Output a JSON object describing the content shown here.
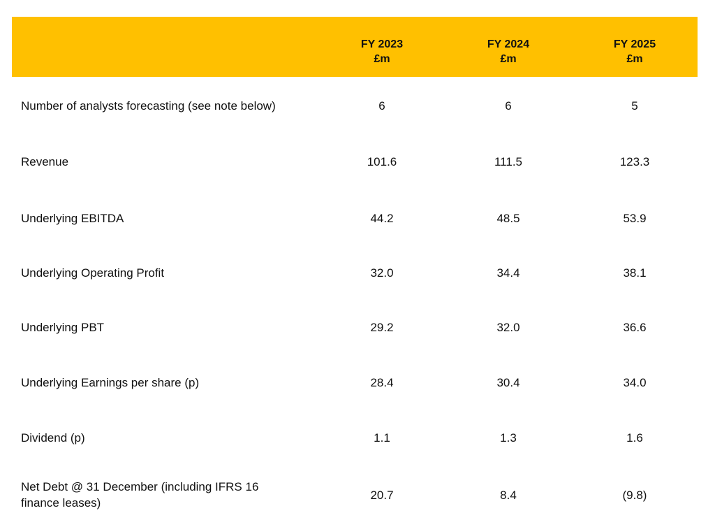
{
  "columns": [
    {
      "year": "FY 2023",
      "unit": "£m"
    },
    {
      "year": "FY 2024",
      "unit": "£m"
    },
    {
      "year": "FY 2025",
      "unit": "£m"
    }
  ],
  "rows": [
    {
      "label": "Number of analysts forecasting (see note below)",
      "values": [
        "6",
        "6",
        "5"
      ]
    },
    {
      "label": "Revenue",
      "values": [
        "101.6",
        "111.5",
        "123.3"
      ]
    },
    {
      "label": "Underlying EBITDA",
      "values": [
        "44.2",
        "48.5",
        "53.9"
      ]
    },
    {
      "label": "Underlying Operating Profit",
      "values": [
        "32.0",
        "34.4",
        "38.1"
      ]
    },
    {
      "label": "Underlying PBT",
      "values": [
        "29.2",
        "32.0",
        "36.6"
      ]
    },
    {
      "label": "Underlying Earnings per share (p)",
      "values": [
        "28.4",
        "30.4",
        "34.0"
      ]
    },
    {
      "label": "Dividend (p)",
      "values": [
        "1.1",
        "1.3",
        "1.6"
      ]
    },
    {
      "label": "Net Debt @ 31 December (including IFRS 16",
      "label_line2": "finance leases)",
      "values": [
        "20.7",
        "8.4",
        "(9.8)"
      ]
    }
  ],
  "colors": {
    "header_background": "#FFC000",
    "text": "#111111"
  }
}
